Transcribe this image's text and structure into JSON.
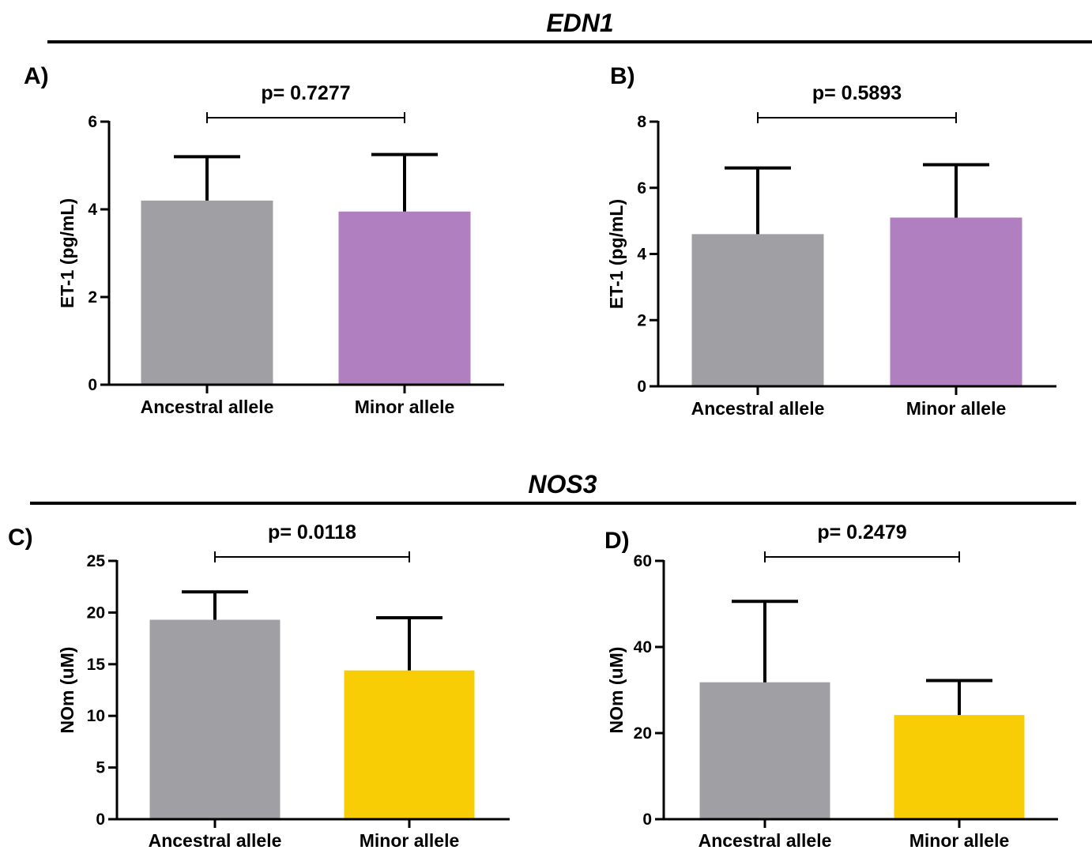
{
  "sections": [
    {
      "title": "EDN1"
    },
    {
      "title": "NOS3"
    }
  ],
  "chart_data": [
    {
      "panel": "A)",
      "type": "bar",
      "section": "EDN1",
      "categories": [
        "Ancestral allele",
        "Minor allele"
      ],
      "values": [
        4.2,
        3.95
      ],
      "error_upper": [
        5.2,
        5.25
      ],
      "colors": [
        "#a09fa4",
        "#b07fbf"
      ],
      "ylabel": "ET-1 (pg/mL)",
      "ylim": [
        0,
        6
      ],
      "yticks": [
        "0",
        "2",
        "4",
        "6"
      ],
      "annotation": "p= 0.7277"
    },
    {
      "panel": "B)",
      "type": "bar",
      "section": "EDN1",
      "categories": [
        "Ancestral allele",
        "Minor allele"
      ],
      "values": [
        4.6,
        5.1
      ],
      "error_upper": [
        6.6,
        6.7
      ],
      "colors": [
        "#a09fa4",
        "#b07fbf"
      ],
      "ylabel": "ET-1 (pg/mL)",
      "ylim": [
        0,
        8
      ],
      "yticks": [
        "0",
        "2",
        "4",
        "6",
        "8"
      ],
      "annotation": "p= 0.5893"
    },
    {
      "panel": "C)",
      "type": "bar",
      "section": "NOS3",
      "categories": [
        "Ancestral allele",
        "Minor allele"
      ],
      "values": [
        19.3,
        14.4
      ],
      "error_upper": [
        22.0,
        19.5
      ],
      "colors": [
        "#a09fa4",
        "#f8cd06"
      ],
      "ylabel": "NOm (uM)",
      "ylim": [
        0,
        25
      ],
      "yticks": [
        "0",
        "5",
        "10",
        "15",
        "20",
        "25"
      ],
      "annotation": "p= 0.0118"
    },
    {
      "panel": "D)",
      "type": "bar",
      "section": "NOS3",
      "categories": [
        "Ancestral allele",
        "Minor allele"
      ],
      "values": [
        31.8,
        24.2
      ],
      "error_upper": [
        50.6,
        32.2
      ],
      "colors": [
        "#a09fa4",
        "#f8cd06"
      ],
      "ylabel": "NOm (uM)",
      "ylim": [
        0,
        60
      ],
      "yticks": [
        "0",
        "20",
        "40",
        "60"
      ],
      "annotation": "p= 0.2479"
    }
  ]
}
